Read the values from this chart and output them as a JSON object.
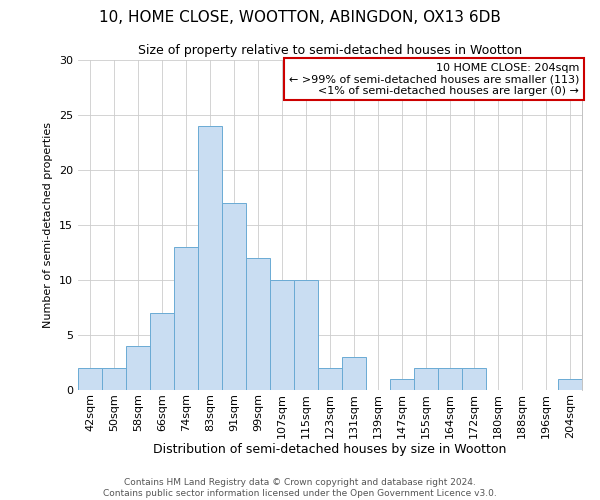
{
  "title": "10, HOME CLOSE, WOOTTON, ABINGDON, OX13 6DB",
  "subtitle": "Size of property relative to semi-detached houses in Wootton",
  "xlabel": "Distribution of semi-detached houses by size in Wootton",
  "ylabel": "Number of semi-detached properties",
  "bar_labels": [
    "42sqm",
    "50sqm",
    "58sqm",
    "66sqm",
    "74sqm",
    "83sqm",
    "91sqm",
    "99sqm",
    "107sqm",
    "115sqm",
    "123sqm",
    "131sqm",
    "139sqm",
    "147sqm",
    "155sqm",
    "164sqm",
    "172sqm",
    "180sqm",
    "188sqm",
    "196sqm",
    "204sqm"
  ],
  "bar_values": [
    2,
    2,
    4,
    7,
    13,
    24,
    17,
    12,
    10,
    10,
    2,
    3,
    0,
    1,
    2,
    2,
    2,
    0,
    0,
    0,
    1
  ],
  "bar_color": "#c9ddf2",
  "bar_edgecolor": "#6aaad4",
  "legend_title": "10 HOME CLOSE: 204sqm",
  "legend_line1": "← >99% of semi-detached houses are smaller (113)",
  "legend_line2": "<1% of semi-detached houses are larger (0) →",
  "legend_box_facecolor": "#ffffff",
  "legend_box_edgecolor": "#cc0000",
  "ylim": [
    0,
    30
  ],
  "yticks": [
    0,
    5,
    10,
    15,
    20,
    25,
    30
  ],
  "footer_line1": "Contains HM Land Registry data © Crown copyright and database right 2024.",
  "footer_line2": "Contains public sector information licensed under the Open Government Licence v3.0.",
  "background_color": "#ffffff",
  "grid_color": "#cccccc",
  "title_fontsize": 11,
  "subtitle_fontsize": 9,
  "xlabel_fontsize": 9,
  "ylabel_fontsize": 8,
  "tick_fontsize": 8,
  "legend_fontsize": 8,
  "footer_fontsize": 6.5
}
